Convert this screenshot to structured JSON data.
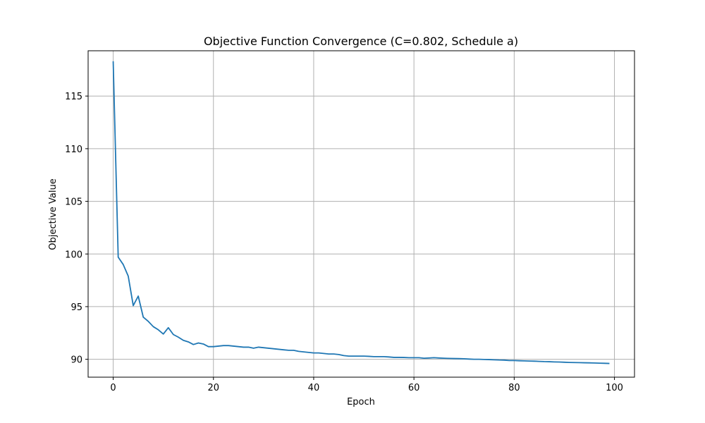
{
  "chart_data": {
    "type": "line",
    "title": "Objective Function Convergence (C=0.802, Schedule a)",
    "xlabel": "Epoch",
    "ylabel": "Objective Value",
    "xlim": [
      -5,
      104
    ],
    "ylim": [
      88.3,
      119.3
    ],
    "xticks": [
      0,
      20,
      40,
      60,
      80,
      100
    ],
    "yticks": [
      90,
      95,
      100,
      105,
      110,
      115
    ],
    "grid": true,
    "line_color": "#1f77b4",
    "series": [
      {
        "x": [
          0,
          1,
          2,
          3,
          4,
          5,
          6,
          7,
          8,
          9,
          10,
          11,
          12,
          13,
          14,
          15,
          16,
          17,
          18,
          19,
          20,
          21,
          22,
          23,
          24,
          25,
          26,
          27,
          28,
          29,
          30,
          31,
          32,
          33,
          34,
          35,
          36,
          37,
          38,
          39,
          40,
          41,
          42,
          43,
          44,
          45,
          46,
          47,
          48,
          49,
          50,
          51,
          52,
          53,
          54,
          55,
          56,
          57,
          58,
          59,
          60,
          61,
          62,
          63,
          64,
          65,
          66,
          67,
          68,
          69,
          70,
          71,
          72,
          73,
          74,
          75,
          76,
          77,
          78,
          79,
          80,
          81,
          82,
          83,
          84,
          85,
          86,
          87,
          88,
          89,
          90,
          91,
          92,
          93,
          94,
          95,
          96,
          97,
          98,
          99
        ],
        "values": [
          118.3,
          99.7,
          99.0,
          97.9,
          95.1,
          96.0,
          94.0,
          93.6,
          93.1,
          92.8,
          92.4,
          93.0,
          92.35,
          92.1,
          91.8,
          91.65,
          91.4,
          91.55,
          91.45,
          91.2,
          91.2,
          91.25,
          91.3,
          91.3,
          91.25,
          91.2,
          91.15,
          91.15,
          91.05,
          91.15,
          91.1,
          91.05,
          91.0,
          90.95,
          90.9,
          90.85,
          90.85,
          90.75,
          90.7,
          90.65,
          90.6,
          90.6,
          90.55,
          90.5,
          90.5,
          90.45,
          90.35,
          90.3,
          90.3,
          90.3,
          90.3,
          90.28,
          90.25,
          90.25,
          90.25,
          90.22,
          90.18,
          90.18,
          90.17,
          90.15,
          90.15,
          90.15,
          90.1,
          90.12,
          90.15,
          90.12,
          90.1,
          90.08,
          90.07,
          90.06,
          90.05,
          90.02,
          90.0,
          90.0,
          89.98,
          89.97,
          89.95,
          89.93,
          89.92,
          89.88,
          89.88,
          89.86,
          89.85,
          89.83,
          89.82,
          89.8,
          89.78,
          89.77,
          89.75,
          89.74,
          89.72,
          89.7,
          89.69,
          89.68,
          89.67,
          89.66,
          89.65,
          89.63,
          89.62,
          89.6
        ]
      }
    ]
  }
}
